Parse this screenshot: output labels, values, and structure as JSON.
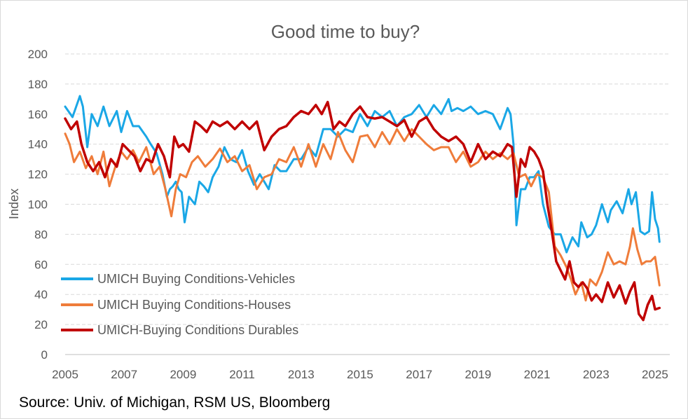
{
  "source_note": "Source: Univ. of Michigan, RSM US, Bloomberg",
  "chart_data": {
    "type": "line",
    "title": "Good time to buy?",
    "xlabel": "",
    "ylabel": "Index",
    "xlim": [
      2005,
      2025.5
    ],
    "ylim": [
      0,
      200
    ],
    "x_ticks": [
      "2005",
      "2007",
      "2009",
      "2011",
      "2013",
      "2015",
      "2017",
      "2019",
      "2021",
      "2023",
      "2025"
    ],
    "y_ticks": [
      "0",
      "20",
      "40",
      "60",
      "80",
      "100",
      "120",
      "140",
      "160",
      "180",
      "200"
    ],
    "grid": "horizontal-dashed",
    "legend_position": "lower-left",
    "series": [
      {
        "name": "UMICH Buying Conditions-Vehicles",
        "color": "#1aa7e6",
        "x": [
          2005.0,
          2005.25,
          2005.5,
          2005.6,
          2005.75,
          2005.9,
          2006.1,
          2006.3,
          2006.5,
          2006.75,
          2006.9,
          2007.1,
          2007.3,
          2007.5,
          2007.75,
          2007.9,
          2008.1,
          2008.3,
          2008.45,
          2008.55,
          2008.65,
          2008.75,
          2008.85,
          2008.95,
          2009.05,
          2009.2,
          2009.4,
          2009.55,
          2009.7,
          2009.85,
          2010.0,
          2010.2,
          2010.4,
          2010.6,
          2010.8,
          2011.0,
          2011.2,
          2011.4,
          2011.6,
          2011.75,
          2011.9,
          2012.1,
          2012.3,
          2012.5,
          2012.75,
          2013.0,
          2013.25,
          2013.5,
          2013.75,
          2014.0,
          2014.25,
          2014.5,
          2014.75,
          2015.0,
          2015.25,
          2015.5,
          2015.75,
          2016.0,
          2016.25,
          2016.5,
          2016.75,
          2017.0,
          2017.25,
          2017.5,
          2017.75,
          2018.0,
          2018.1,
          2018.3,
          2018.5,
          2018.75,
          2019.0,
          2019.25,
          2019.5,
          2019.75,
          2020.0,
          2020.1,
          2020.2,
          2020.3,
          2020.45,
          2020.6,
          2020.75,
          2020.9,
          2021.05,
          2021.2,
          2021.4,
          2021.6,
          2021.8,
          2022.0,
          2022.2,
          2022.4,
          2022.5,
          2022.7,
          2022.85,
          2023.0,
          2023.2,
          2023.4,
          2023.5,
          2023.7,
          2023.9,
          2024.1,
          2024.2,
          2024.35,
          2024.5,
          2024.65,
          2024.8,
          2024.9,
          2025.0,
          2025.1,
          2025.15
        ],
        "y": [
          165,
          158,
          172,
          165,
          138,
          160,
          152,
          165,
          152,
          162,
          148,
          162,
          152,
          152,
          145,
          140,
          134,
          120,
          105,
          110,
          112,
          115,
          110,
          108,
          88,
          105,
          100,
          115,
          112,
          108,
          118,
          125,
          138,
          130,
          128,
          136,
          122,
          113,
          120,
          115,
          110,
          126,
          122,
          122,
          130,
          130,
          138,
          132,
          150,
          150,
          145,
          150,
          148,
          160,
          152,
          162,
          158,
          162,
          152,
          158,
          160,
          166,
          158,
          166,
          160,
          170,
          162,
          164,
          162,
          165,
          160,
          162,
          160,
          150,
          164,
          160,
          140,
          86,
          110,
          110,
          118,
          118,
          122,
          100,
          85,
          80,
          80,
          68,
          78,
          72,
          88,
          78,
          80,
          86,
          100,
          88,
          96,
          102,
          94,
          110,
          100,
          108,
          82,
          80,
          82,
          108,
          90,
          84,
          75
        ]
      },
      {
        "name": "UMICH Buying Conditions-Houses",
        "color": "#ef7c3a",
        "x": [
          2005.0,
          2005.15,
          2005.3,
          2005.5,
          2005.7,
          2005.9,
          2006.1,
          2006.3,
          2006.5,
          2006.7,
          2006.9,
          2007.1,
          2007.3,
          2007.5,
          2007.75,
          2008.0,
          2008.2,
          2008.4,
          2008.6,
          2008.75,
          2008.9,
          2009.1,
          2009.3,
          2009.5,
          2009.75,
          2010.0,
          2010.25,
          2010.5,
          2010.75,
          2011.0,
          2011.25,
          2011.5,
          2011.75,
          2012.0,
          2012.25,
          2012.5,
          2012.75,
          2013.0,
          2013.25,
          2013.5,
          2013.75,
          2014.0,
          2014.25,
          2014.5,
          2014.75,
          2015.0,
          2015.25,
          2015.5,
          2015.75,
          2016.0,
          2016.25,
          2016.5,
          2016.75,
          2017.0,
          2017.25,
          2017.5,
          2017.75,
          2018.0,
          2018.25,
          2018.5,
          2018.75,
          2019.0,
          2019.25,
          2019.5,
          2019.75,
          2020.0,
          2020.2,
          2020.4,
          2020.6,
          2020.8,
          2021.0,
          2021.2,
          2021.4,
          2021.6,
          2021.8,
          2022.0,
          2022.15,
          2022.3,
          2022.5,
          2022.65,
          2022.8,
          2023.0,
          2023.2,
          2023.4,
          2023.6,
          2023.8,
          2024.0,
          2024.15,
          2024.25,
          2024.4,
          2024.55,
          2024.7,
          2024.85,
          2025.0,
          2025.15
        ],
        "y": [
          147,
          140,
          128,
          135,
          124,
          132,
          120,
          135,
          112,
          125,
          135,
          130,
          136,
          128,
          138,
          120,
          125,
          110,
          92,
          110,
          120,
          118,
          128,
          132,
          125,
          130,
          137,
          128,
          132,
          122,
          126,
          110,
          118,
          120,
          130,
          128,
          138,
          125,
          140,
          125,
          140,
          130,
          148,
          136,
          128,
          145,
          146,
          138,
          148,
          140,
          150,
          142,
          150,
          145,
          140,
          136,
          138,
          138,
          128,
          135,
          125,
          128,
          135,
          130,
          134,
          130,
          134,
          118,
          120,
          112,
          120,
          118,
          108,
          72,
          66,
          58,
          50,
          40,
          48,
          36,
          50,
          46,
          55,
          68,
          60,
          62,
          60,
          72,
          84,
          70,
          60,
          62,
          62,
          65,
          46
        ]
      },
      {
        "name": "UMICH-Buying Conditions Durables",
        "color": "#c00000",
        "x": [
          2005.0,
          2005.2,
          2005.4,
          2005.55,
          2005.75,
          2005.95,
          2006.15,
          2006.35,
          2006.55,
          2006.75,
          2006.95,
          2007.15,
          2007.35,
          2007.55,
          2007.75,
          2007.95,
          2008.15,
          2008.35,
          2008.55,
          2008.7,
          2008.85,
          2009.0,
          2009.2,
          2009.4,
          2009.6,
          2009.8,
          2010.0,
          2010.25,
          2010.5,
          2010.75,
          2011.0,
          2011.25,
          2011.5,
          2011.75,
          2012.0,
          2012.25,
          2012.5,
          2012.75,
          2013.0,
          2013.25,
          2013.5,
          2013.7,
          2013.9,
          2014.1,
          2014.3,
          2014.5,
          2014.75,
          2015.0,
          2015.25,
          2015.5,
          2015.75,
          2016.0,
          2016.25,
          2016.5,
          2016.75,
          2017.0,
          2017.25,
          2017.5,
          2017.75,
          2018.0,
          2018.25,
          2018.5,
          2018.75,
          2019.0,
          2019.25,
          2019.5,
          2019.75,
          2020.0,
          2020.15,
          2020.3,
          2020.45,
          2020.6,
          2020.75,
          2020.9,
          2021.05,
          2021.2,
          2021.35,
          2021.5,
          2021.65,
          2021.8,
          2021.95,
          2022.1,
          2022.25,
          2022.4,
          2022.55,
          2022.7,
          2022.85,
          2023.0,
          2023.2,
          2023.4,
          2023.6,
          2023.8,
          2024.0,
          2024.15,
          2024.3,
          2024.45,
          2024.6,
          2024.75,
          2024.9,
          2025.0,
          2025.15
        ],
        "y": [
          157,
          150,
          155,
          140,
          128,
          122,
          128,
          118,
          130,
          125,
          140,
          136,
          132,
          122,
          130,
          128,
          140,
          132,
          118,
          145,
          138,
          140,
          135,
          155,
          152,
          148,
          155,
          152,
          155,
          150,
          155,
          150,
          155,
          136,
          145,
          150,
          152,
          158,
          162,
          160,
          166,
          160,
          168,
          150,
          155,
          152,
          160,
          165,
          158,
          157,
          158,
          155,
          152,
          156,
          145,
          155,
          158,
          150,
          145,
          142,
          145,
          140,
          128,
          140,
          130,
          135,
          132,
          140,
          138,
          105,
          130,
          125,
          138,
          135,
          130,
          122,
          100,
          82,
          62,
          56,
          50,
          62,
          48,
          45,
          48,
          44,
          36,
          40,
          35,
          48,
          38,
          46,
          34,
          42,
          48,
          27,
          23,
          33,
          39,
          30,
          31
        ]
      }
    ]
  }
}
